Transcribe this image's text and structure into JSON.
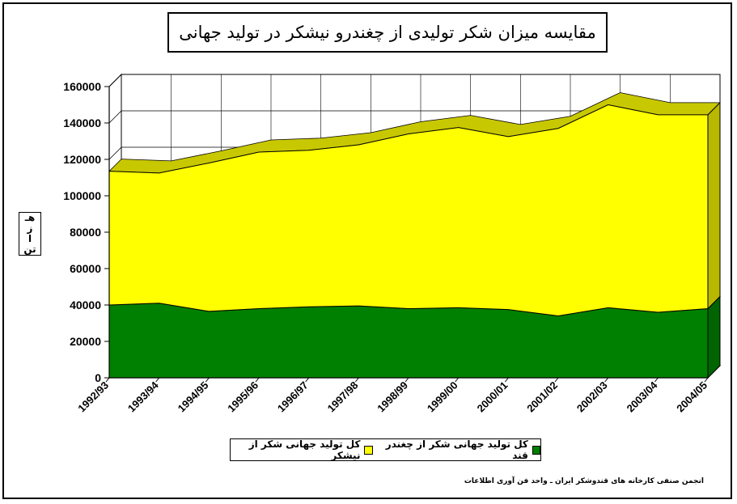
{
  "chart_data": {
    "type": "area",
    "title": "مقایسه میزان شکر تولیدی از چغندرو نیشکر در تولید جهانی",
    "ylabel": "هزار تن",
    "ylabel_chars": [
      "هـ",
      "ز",
      "ا",
      "ر"
    ],
    "ylabel_last": "تن",
    "ylim": [
      0,
      160000
    ],
    "yticks": [
      0,
      20000,
      40000,
      60000,
      80000,
      100000,
      120000,
      140000,
      160000
    ],
    "stacked": true,
    "categories": [
      "1992/93",
      "1993/94",
      "1994/95",
      "1995/96",
      "1996/97",
      "1997/98",
      "1998/99",
      "1999/00",
      "2000/01",
      "2001/02",
      "2002/03",
      "2003/04",
      "2004/05"
    ],
    "series": [
      {
        "name": "کل تولید جهانی شکر از چغندر قند",
        "color": "#008000",
        "values": [
          40000,
          41000,
          36500,
          38000,
          39000,
          39500,
          38000,
          38500,
          37500,
          34000,
          38500,
          36000,
          38000
        ]
      },
      {
        "name": "کل تولید جهانی شکر از نیشکر",
        "color": "#ffff00",
        "values": [
          73500,
          71500,
          81500,
          86000,
          86000,
          88500,
          96000,
          99000,
          95000,
          103000,
          111500,
          108500,
          106500
        ]
      }
    ],
    "grid": true,
    "legend_position": "bottom"
  },
  "source_note": "انجمن صنفی کارخانه های قندوشکر ایران ـ واحد فن آوری اطلاعات"
}
